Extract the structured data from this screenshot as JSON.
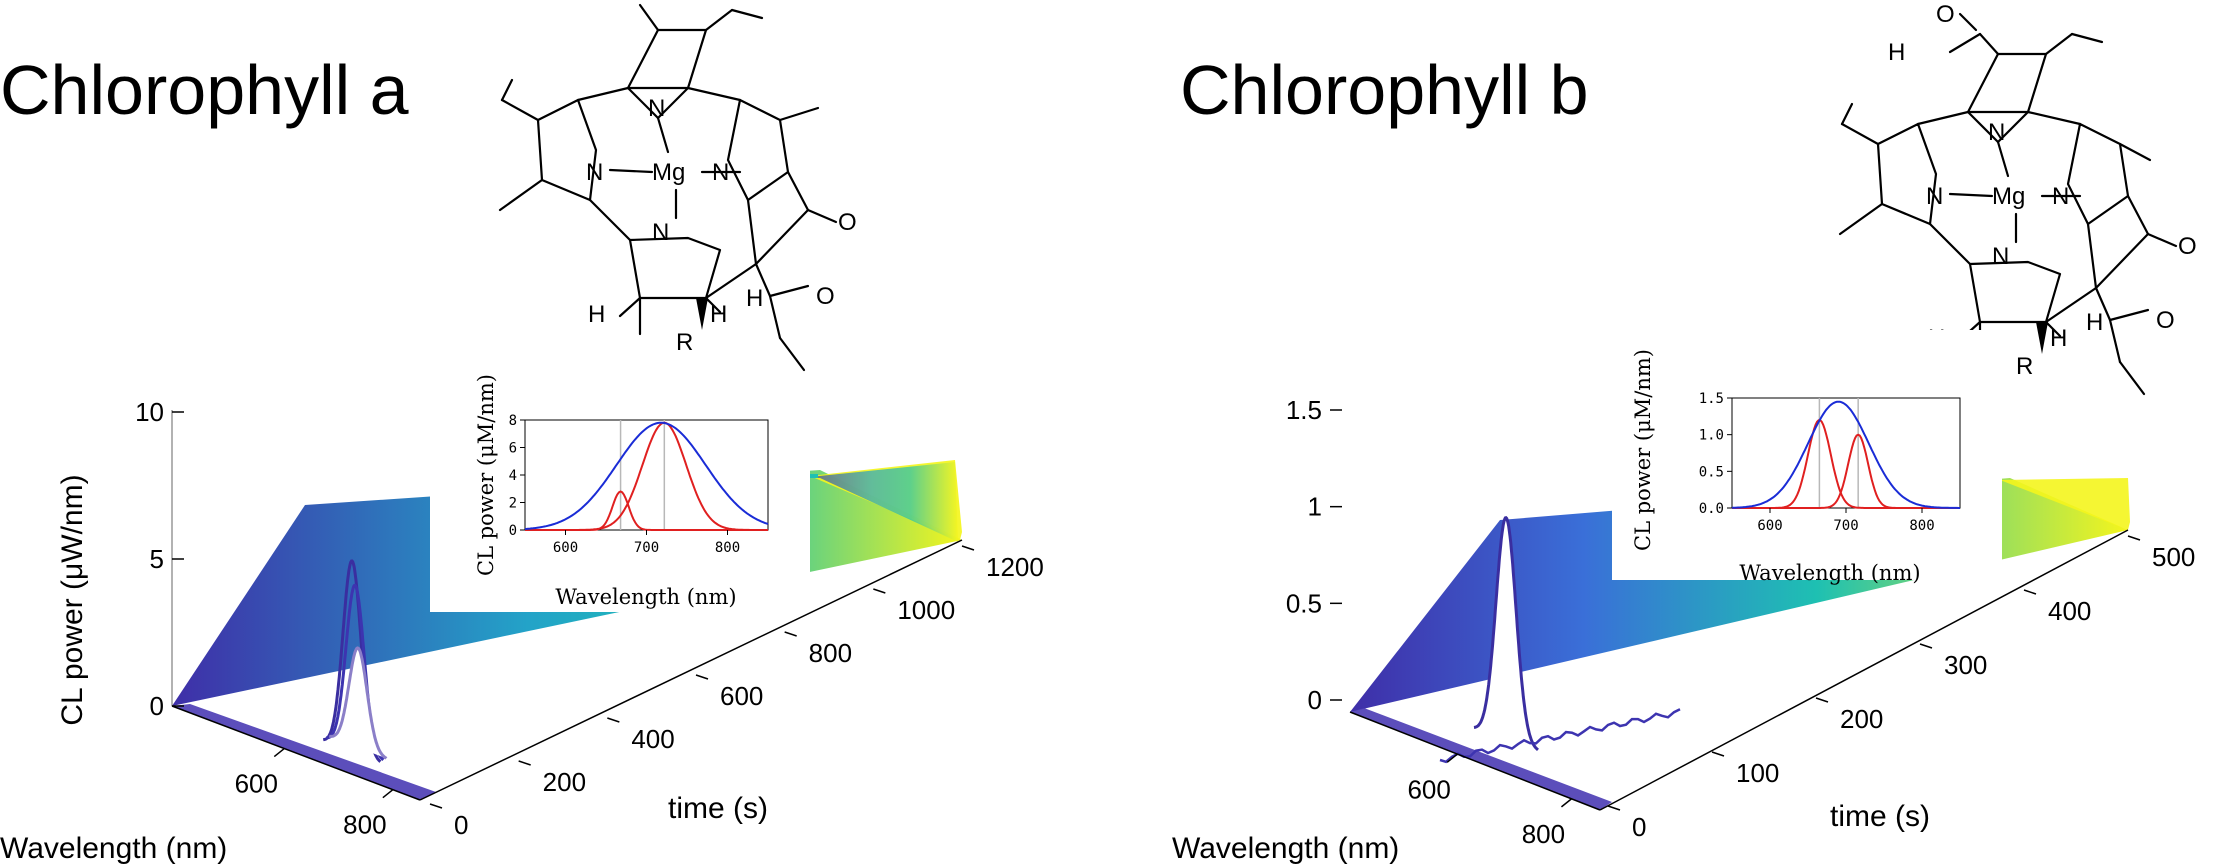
{
  "panels": [
    {
      "title": "Chlorophyll a",
      "molecule": "chlorophyll-a",
      "atoms": {
        "mg": "Mg",
        "n": "N",
        "o": "O",
        "h": "H",
        "r": "R"
      },
      "chart_data": {
        "type": "area",
        "ylabel": "CL power (μW/nm)",
        "xlabel": "Wavelength (nm)",
        "zlabel": "time (s)",
        "y_ticks": [
          "0",
          "5",
          "10"
        ],
        "x_ticks": [
          "600",
          "800"
        ],
        "z_ticks": [
          "0",
          "200",
          "400",
          "600",
          "800",
          "1000",
          "1200"
        ],
        "ylim": [
          0,
          10
        ],
        "xlim": [
          500,
          850
        ],
        "zlim": [
          0,
          1200
        ],
        "colormap": [
          "#3f2ea8",
          "#1ec0b2",
          "#f4f51d"
        ],
        "peaks": [
          {
            "center": 720,
            "value": 6.5
          },
          {
            "center": 720,
            "value": 5.6
          },
          {
            "center": 720,
            "value": 3.4
          }
        ],
        "inset": {
          "ylabel": "CL power (μM/nm)",
          "xlabel": "Wavelength (nm)",
          "x_ticks": [
            "600",
            "700",
            "800"
          ],
          "y_ticks": [
            "0",
            "2",
            "4",
            "6",
            "8"
          ],
          "xlim": [
            550,
            850
          ],
          "ylim": [
            0,
            8
          ],
          "total": {
            "color": "#1a2cd6",
            "center": 718,
            "sigma": 55,
            "amp": 7.8
          },
          "components": [
            {
              "color": "#e02020",
              "center": 668,
              "sigma": 10,
              "amp": 2.8
            },
            {
              "color": "#e02020",
              "center": 722,
              "sigma": 27,
              "amp": 7.8
            }
          ],
          "markers": [
            668,
            722
          ]
        }
      }
    },
    {
      "title": "Chlorophyll b",
      "molecule": "chlorophyll-b",
      "atoms": {
        "mg": "Mg",
        "n": "N",
        "o": "O",
        "h": "H",
        "r": "R"
      },
      "chart_data": {
        "type": "area",
        "ylabel": "",
        "xlabel": "Wavelength (nm)",
        "zlabel": "time (s)",
        "y_ticks": [
          "0",
          "0.5",
          "1",
          "1.5"
        ],
        "x_ticks": [
          "600",
          "800"
        ],
        "z_ticks": [
          "0",
          "100",
          "200",
          "300",
          "400",
          "500"
        ],
        "ylim": [
          0,
          1.5
        ],
        "xlim": [
          500,
          850
        ],
        "zlim": [
          0,
          500
        ],
        "colormap": [
          "#3f2ea8",
          "#1ec0b2",
          "#f4f51d"
        ],
        "peaks": [
          {
            "center": 700,
            "value": 1.15
          }
        ],
        "inset": {
          "ylabel": "CL power (μM/nm)",
          "xlabel": "Wavelength (nm)",
          "x_ticks": [
            "600",
            "700",
            "800"
          ],
          "y_ticks": [
            "0.0",
            "0.5",
            "1.0",
            "1.5"
          ],
          "xlim": [
            550,
            850
          ],
          "ylim": [
            0,
            1.5
          ],
          "total": {
            "color": "#1a2cd6",
            "center": 690,
            "sigma": 40,
            "amp": 1.45
          },
          "components": [
            {
              "color": "#e02020",
              "center": 665,
              "sigma": 15,
              "amp": 1.2
            },
            {
              "color": "#e02020",
              "center": 716,
              "sigma": 13,
              "amp": 1.0
            }
          ],
          "markers": [
            665,
            716
          ]
        }
      }
    }
  ]
}
